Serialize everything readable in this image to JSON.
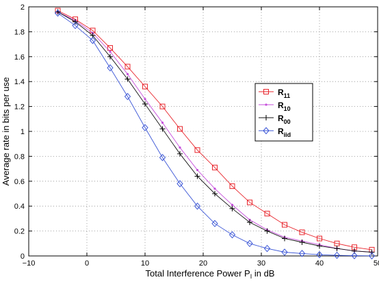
{
  "chart_data": {
    "type": "line",
    "title": "",
    "xlabel": "Total Interference Power P",
    "xlabel_sub": "I",
    "xlabel_suffix": " in dB",
    "ylabel": "Average rate in bits per use",
    "xlim": [
      -10,
      50
    ],
    "ylim": [
      0,
      2
    ],
    "xticks": [
      -10,
      0,
      10,
      20,
      30,
      40,
      50
    ],
    "yticks": [
      0,
      0.2,
      0.4,
      0.6,
      0.8,
      1,
      1.2,
      1.4,
      1.6,
      1.8,
      2
    ],
    "xtick_labels": [
      "−10",
      "0",
      "10",
      "20",
      "30",
      "40",
      "50"
    ],
    "ytick_labels": [
      "0",
      "0.2",
      "0.4",
      "0.6",
      "0.8",
      "1",
      "1.2",
      "1.4",
      "1.6",
      "1.8",
      "2"
    ],
    "grid": true,
    "legend_position": "center-right",
    "x": [
      -5,
      -2,
      1,
      4,
      7,
      10,
      13,
      16,
      19,
      22,
      25,
      28,
      31,
      34,
      37,
      40,
      43,
      46,
      49
    ],
    "series": [
      {
        "name": "R",
        "sub": "11",
        "color": "#e8242b",
        "marker": "square",
        "values": [
          1.97,
          1.9,
          1.81,
          1.67,
          1.52,
          1.36,
          1.2,
          1.02,
          0.85,
          0.71,
          0.56,
          0.43,
          0.34,
          0.25,
          0.19,
          0.14,
          0.1,
          0.07,
          0.05
        ]
      },
      {
        "name": "R",
        "sub": "10",
        "color": "#c64fdc",
        "marker": "dot",
        "values": [
          1.96,
          1.89,
          1.79,
          1.64,
          1.46,
          1.26,
          1.07,
          0.87,
          0.69,
          0.54,
          0.41,
          0.29,
          0.21,
          0.15,
          0.12,
          0.09,
          0.06,
          0.04,
          0.03
        ]
      },
      {
        "name": "R",
        "sub": "00",
        "color": "#111111",
        "marker": "plus",
        "values": [
          1.96,
          1.88,
          1.77,
          1.6,
          1.42,
          1.22,
          1.02,
          0.82,
          0.64,
          0.5,
          0.38,
          0.27,
          0.2,
          0.14,
          0.11,
          0.08,
          0.06,
          0.04,
          0.03
        ]
      },
      {
        "name": "R",
        "sub": "iid",
        "color": "#3a55d6",
        "marker": "diamond",
        "values": [
          1.95,
          1.85,
          1.73,
          1.51,
          1.28,
          1.03,
          0.79,
          0.58,
          0.4,
          0.26,
          0.17,
          0.1,
          0.06,
          0.03,
          0.02,
          0.01,
          0.005,
          0.002,
          0.001
        ]
      }
    ]
  }
}
